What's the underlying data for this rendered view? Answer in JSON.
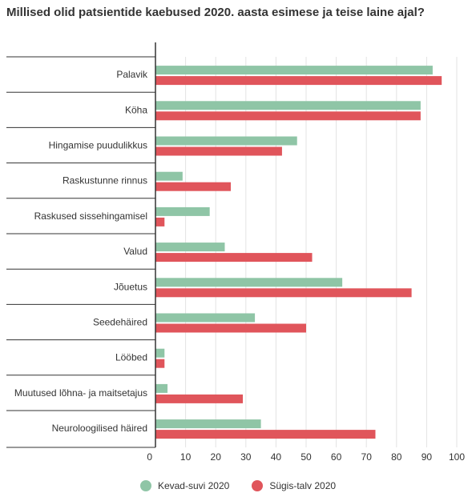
{
  "title": "Millised olid patsientide kaebused 2020. aasta esimese ja teise laine ajal?",
  "chart_data": {
    "type": "bar",
    "orientation": "horizontal",
    "title": "Millised olid patsientide kaebused 2020. aasta esimese ja teise laine ajal?",
    "categories": [
      "Palavik",
      "Köha",
      "Hingamise puudulikkus",
      "Raskustunne rinnus",
      "Raskused sissehingamisel",
      "Valud",
      "Jõuetus",
      "Seedehäired",
      "Lööbed",
      "Muutused lõhna- ja maitsetajus",
      "Neuroloogilised häired"
    ],
    "series": [
      {
        "name": "Kevad-suvi 2020",
        "color": "#8fc5a6",
        "values": [
          92,
          88,
          47,
          9,
          18,
          23,
          62,
          33,
          3,
          4,
          35
        ]
      },
      {
        "name": "Sügis-talv 2020",
        "color": "#e0555b",
        "values": [
          95,
          88,
          42,
          25,
          3,
          52,
          85,
          50,
          3,
          29,
          73
        ]
      }
    ],
    "xlim": [
      0,
      100
    ],
    "xticks": [
      "0",
      "10",
      "20",
      "30",
      "40",
      "50",
      "60",
      "70",
      "80",
      "90",
      "100"
    ],
    "grid": true,
    "legend": "bottom"
  }
}
